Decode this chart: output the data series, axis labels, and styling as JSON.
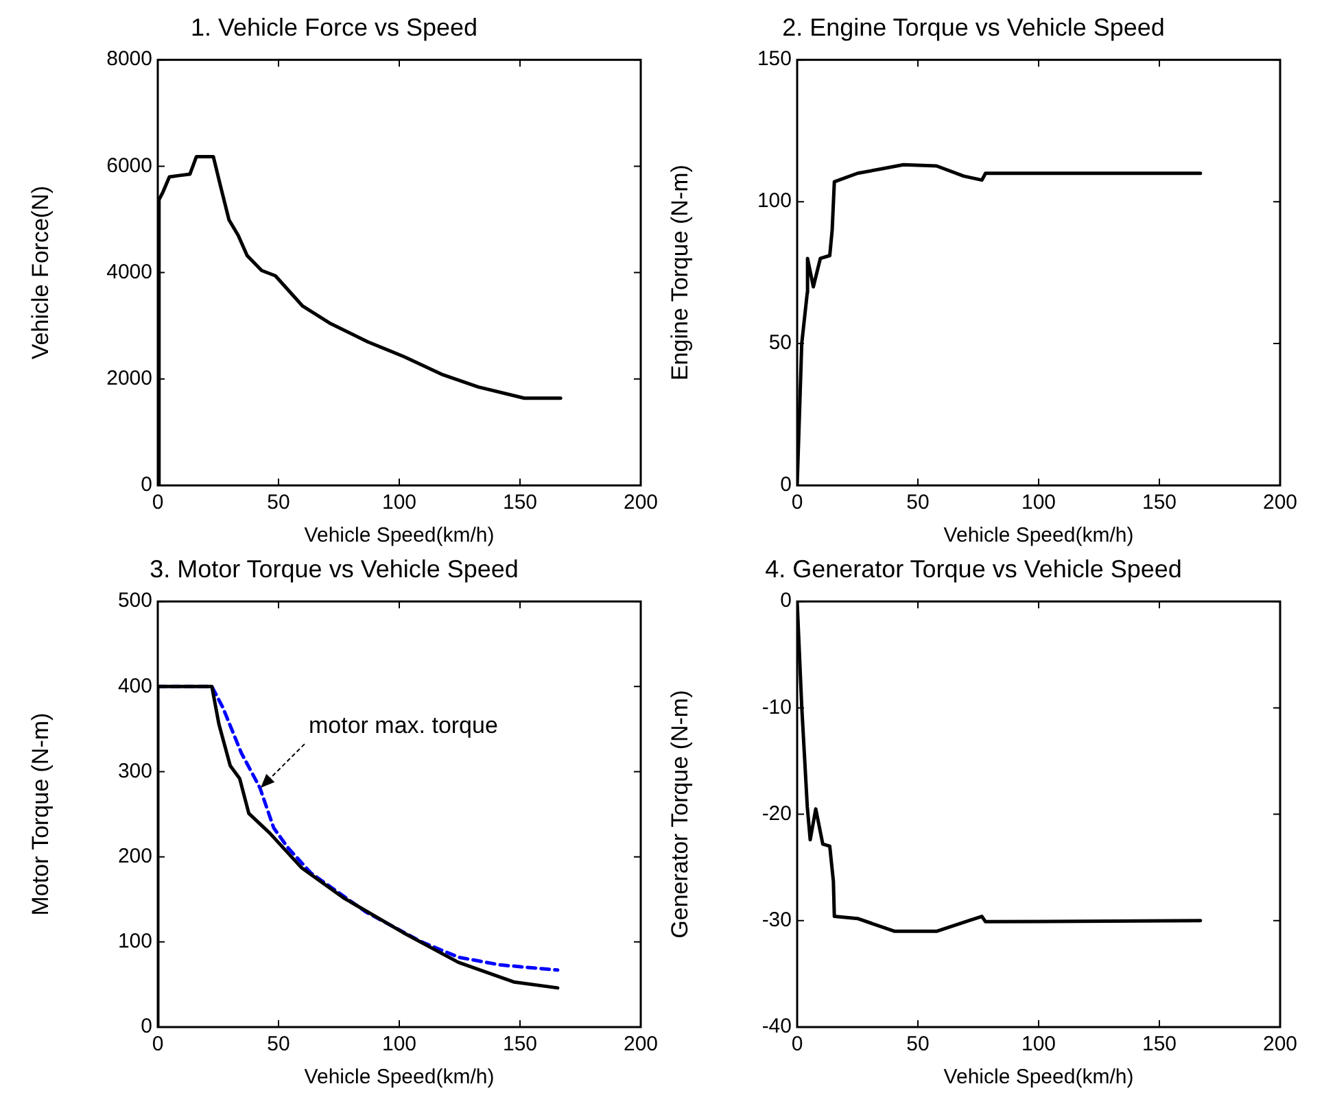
{
  "chart_data": [
    {
      "type": "line",
      "title": "1. Vehicle Force vs Speed",
      "xlabel": "Vehicle Speed(km/h)",
      "ylabel": "Vehicle Force(N)",
      "xlim": [
        0,
        200
      ],
      "xticks": [
        0,
        50,
        100,
        150,
        200
      ],
      "ylim": [
        0,
        8000
      ],
      "yticks": [
        0,
        2000,
        4000,
        6000,
        8000
      ],
      "grid": false,
      "series": [
        {
          "color": "#000000",
          "x": [
            0,
            0.5,
            2,
            4.8,
            8,
            13.3,
            16,
            23,
            25.8,
            29.5,
            33.3,
            37,
            43,
            48.7,
            60,
            71.6,
            86.9,
            102,
            117.5,
            132.7,
            151.8,
            166.8
          ],
          "values": [
            0,
            5370,
            5500,
            5800,
            5820,
            5850,
            6180,
            6180,
            5660,
            4990,
            4700,
            4320,
            4040,
            3940,
            3370,
            3040,
            2700,
            2420,
            2090,
            1850,
            1640,
            1640
          ]
        }
      ]
    },
    {
      "type": "line",
      "title": "2. Engine Torque vs Vehicle Speed",
      "xlabel": "Vehicle Speed(km/h)",
      "ylabel": "Engine Torque (N-m)",
      "xlim": [
        0,
        200
      ],
      "xticks": [
        0,
        50,
        100,
        150,
        200
      ],
      "ylim": [
        0,
        150
      ],
      "yticks": [
        0,
        50,
        100,
        150
      ],
      "grid": false,
      "series": [
        {
          "color": "#000000",
          "x": [
            0,
            1.9,
            4.2,
            4.3,
            6.7,
            9.6,
            13.5,
            14.5,
            15.4,
            25,
            34.6,
            44,
            57.7,
            69,
            76.5,
            78,
            167
          ],
          "values": [
            0,
            50,
            68,
            80,
            70,
            80,
            81,
            90,
            107,
            110,
            111.5,
            113,
            112.6,
            109,
            107.6,
            110,
            110
          ]
        }
      ]
    },
    {
      "type": "line",
      "title": "3. Motor Torque vs Vehicle Speed",
      "xlabel": "Vehicle Speed(km/h)",
      "ylabel": "Motor Torque (N-m)",
      "xlim": [
        0,
        200
      ],
      "xticks": [
        0,
        50,
        100,
        150,
        200
      ],
      "ylim": [
        0,
        500
      ],
      "yticks": [
        0,
        100,
        200,
        300,
        400,
        500
      ],
      "grid": false,
      "annotations": [
        {
          "text": "motor max. torque",
          "x": 42.6,
          "y": 281
        }
      ],
      "series": [
        {
          "color": "#000000",
          "x": [
            0,
            0,
            22.4,
            25.3,
            30,
            33.9,
            37.7,
            46.3,
            59.6,
            76.8,
            101.6,
            124.5,
            147.4,
            165.6
          ],
          "values": [
            0,
            400,
            400,
            356,
            307,
            292,
            251,
            228,
            187,
            152,
            111,
            76,
            53,
            46
          ]
        },
        {
          "color": "#0000ff",
          "line_style": "dashed",
          "x": [
            0,
            22.4,
            27,
            34.6,
            42.3,
            48,
            53.8,
            63.4,
            86.3,
            109.3,
            124.6,
            141.8,
            165.6
          ],
          "values": [
            400,
            400,
            375,
            322,
            281,
            234,
            211,
            181,
            135,
            100,
            82,
            73,
            67
          ]
        }
      ]
    },
    {
      "type": "line",
      "title": "4. Generator Torque vs Vehicle Speed",
      "xlabel": "Vehicle Speed(km/h)",
      "ylabel": "Generator Torque (N-m)",
      "xlim": [
        0,
        200
      ],
      "xticks": [
        0,
        50,
        100,
        150,
        200
      ],
      "ylim": [
        -40,
        0
      ],
      "yticks": [
        -40,
        -30,
        -20,
        -10,
        0
      ],
      "grid": false,
      "series": [
        {
          "color": "#000000",
          "x": [
            0,
            1.9,
            2.9,
            4.2,
            5.4,
            7.7,
            10.6,
            13.5,
            15,
            15.4,
            25,
            40.4,
            57.7,
            71,
            76.5,
            78,
            167
          ],
          "values": [
            0,
            -9.9,
            -14,
            -19.3,
            -22.4,
            -19.5,
            -22.8,
            -23,
            -26.3,
            -29.6,
            -29.8,
            -31,
            -31,
            -30,
            -29.6,
            -30.1,
            -30
          ]
        }
      ]
    }
  ]
}
